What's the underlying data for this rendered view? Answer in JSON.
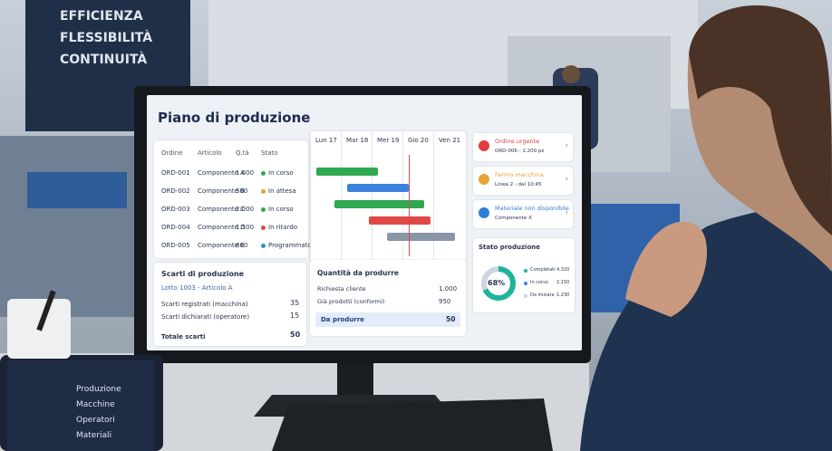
{
  "banner": {
    "lines": [
      "EFFICIENZA",
      "FLESSIBILITÀ",
      "CONTINUITÀ"
    ]
  },
  "screen": {
    "title": "Piano di produzione",
    "orders": {
      "headers": [
        "Ordine",
        "Articolo",
        "Q.tà",
        "Stato"
      ],
      "rows": [
        [
          "ORD-001",
          "Componente A",
          "1.000",
          "In corso"
        ],
        [
          "ORD-002",
          "Componente B",
          "500",
          "In attesa"
        ],
        [
          "ORD-003",
          "Componente C",
          "2.000",
          "In corso"
        ],
        [
          "ORD-004",
          "Componente D",
          "1.500",
          "In ritardo"
        ],
        [
          "ORD-005",
          "Componente E",
          "800",
          "Programmato"
        ]
      ],
      "status_colors": [
        "#2fa84f",
        "#e8a23a",
        "#2fa84f",
        "#e04848",
        "#2b8fd6"
      ]
    },
    "gantt": {
      "days": [
        "Lun 17",
        "Mar 18",
        "Mer 19",
        "Gio 20",
        "Ven 21"
      ],
      "bars": [
        {
          "start": 0.2,
          "end": 2.2,
          "color": "#2fa84f"
        },
        {
          "start": 1.2,
          "end": 3.2,
          "color": "#3b82e0"
        },
        {
          "start": 0.8,
          "end": 3.7,
          "color": "#2fa84f"
        },
        {
          "start": 1.9,
          "end": 3.9,
          "color": "#e04848"
        },
        {
          "start": 2.5,
          "end": 4.7,
          "color": "#8a96a8"
        }
      ],
      "now": 3.2
    },
    "alerts": [
      {
        "title": "Ordine urgente",
        "detail": "ORD-006 - 1.200 pz",
        "color": "#e03c3c"
      },
      {
        "title": "Fermo macchina",
        "detail": "Linea 2 - dal 10:45",
        "color": "#e8a23a"
      },
      {
        "title": "Materiale non disponibile",
        "detail": "Componente X",
        "color": "#2b7fd6"
      }
    ],
    "status": {
      "title": "Stato produzione",
      "percent": {
        "value": 68,
        "label": "68%"
      },
      "legend": [
        [
          "Completati",
          "4.320"
        ],
        [
          "In corso",
          "2.150"
        ],
        [
          "Da iniziare",
          "1.230"
        ]
      ],
      "colors": [
        "#1fb39a",
        "#3b82e0",
        "#cfd6e0"
      ]
    },
    "waste": {
      "title": "Scarti di produzione",
      "lot": "Lotto 1003 - Articolo A",
      "rows": [
        [
          "Scarti registrati (macchina)",
          "35"
        ],
        [
          "Scarti dichiarati (operatore)",
          "15"
        ]
      ],
      "total": [
        "Totale scarti",
        "50"
      ]
    },
    "quantity": {
      "title": "Quantità da produrre",
      "rows": [
        [
          "Richiesta cliente",
          "1.000"
        ],
        [
          "Già prodotti (conformi)",
          "950"
        ]
      ],
      "total": [
        "Da produrre",
        "50"
      ]
    }
  },
  "tablet": {
    "menu": [
      "Produzione",
      "Macchine",
      "Operatori",
      "Materiali"
    ]
  }
}
